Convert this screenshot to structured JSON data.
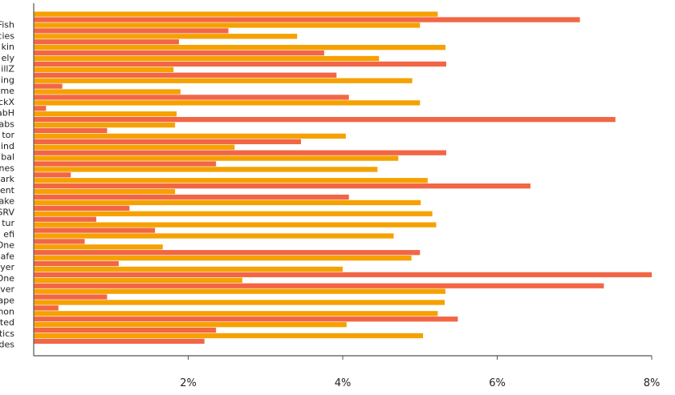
{
  "chart_data": {
    "type": "bar",
    "orientation": "horizontal",
    "grid": false,
    "xlim": [
      0,
      8
    ],
    "x_ticks": [
      2,
      4,
      6,
      8
    ],
    "x_tick_labels": [
      "2%",
      "4%",
      "6%",
      "8%"
    ],
    "categories": [
      "Fish",
      "cies",
      "kin",
      "ely",
      "illZ",
      "ing",
      "me",
      "ckX",
      "abH",
      "abs",
      "tor",
      "ind",
      "bal",
      "nes",
      "ark",
      "ent",
      "ake",
      "SRV",
      "tur",
      "efi",
      "One",
      "afe",
      "yer",
      "One",
      "ver",
      "ape",
      "hon",
      "ted",
      "tics",
      "des"
    ],
    "series": [
      {
        "color": "#F5A100",
        "values": [
          5.23,
          5.0,
          3.41,
          5.33,
          4.47,
          1.81,
          4.9,
          1.9,
          5.0,
          1.85,
          1.83,
          4.04,
          2.6,
          4.72,
          4.45,
          5.1,
          1.83,
          5.01,
          5.16,
          5.21,
          4.66,
          1.67,
          4.89,
          4.0,
          2.7,
          5.33,
          5.32,
          5.23,
          4.05,
          5.04
        ]
      },
      {
        "color": "#F26645",
        "values": [
          7.07,
          2.52,
          1.88,
          3.76,
          5.34,
          3.92,
          0.37,
          4.08,
          0.16,
          7.53,
          0.95,
          3.46,
          5.34,
          2.36,
          0.48,
          6.43,
          4.08,
          1.24,
          0.81,
          1.57,
          0.66,
          5.0,
          1.1,
          8.0,
          7.38,
          0.95,
          0.32,
          5.49,
          2.36,
          2.21
        ]
      }
    ]
  }
}
